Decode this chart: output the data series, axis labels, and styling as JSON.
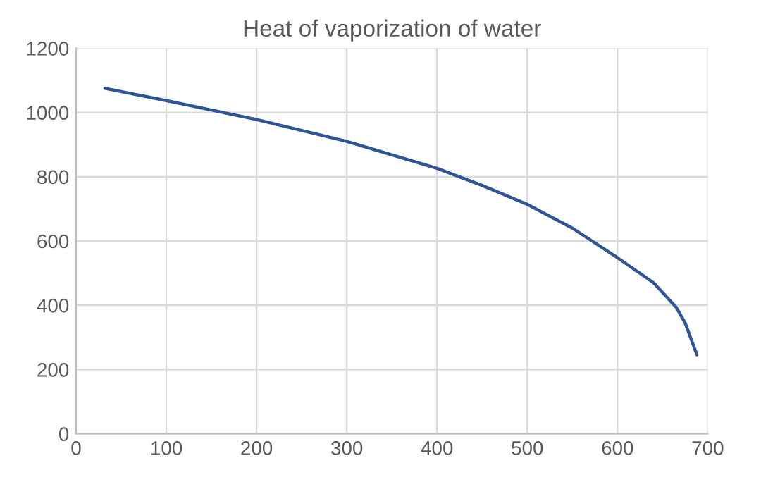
{
  "chart_data": {
    "type": "line",
    "title": "Heat of vaporization of water",
    "x": [
      32,
      100,
      200,
      300,
      400,
      450,
      500,
      550,
      600,
      640,
      665,
      675,
      688
    ],
    "series": [
      {
        "color": "#2f5597",
        "values": [
          1075,
          1037,
          978,
          910,
          826,
          773,
          714,
          640,
          548,
          470,
          394,
          345,
          246
        ]
      }
    ],
    "xlim": [
      0,
      700
    ],
    "xticks": [
      0,
      100,
      200,
      300,
      400,
      500,
      600,
      700
    ],
    "ylim": [
      0,
      1200
    ],
    "yticks": [
      0,
      200,
      400,
      600,
      800,
      1000,
      1200
    ],
    "grid": true,
    "marker": "none",
    "line_style": "solid"
  }
}
